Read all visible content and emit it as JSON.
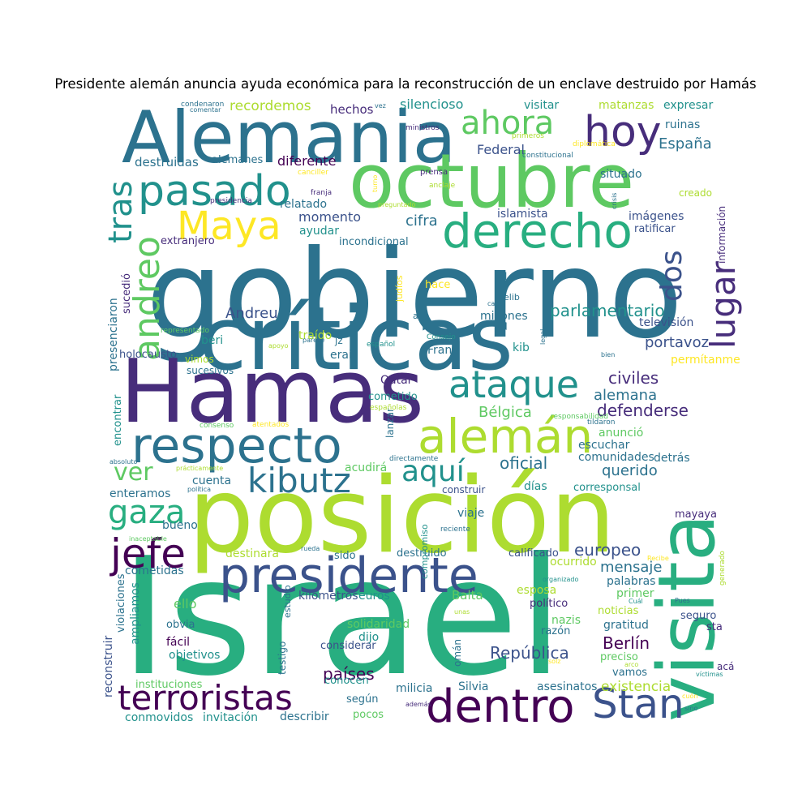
{
  "title": "Presidente alemán anuncia ayuda económica para la reconstrucción de un enclave destruido por Hamás",
  "colors": {
    "background": "#ffffff",
    "palette": [
      "#440154",
      "#472d7b",
      "#3b528b",
      "#2c728e",
      "#21918c",
      "#28ae80",
      "#5ec962",
      "#addc30",
      "#fde725"
    ]
  },
  "words": [
    {
      "text": "Israel",
      "color": "#28ae80"
    },
    {
      "text": "gobierno",
      "color": "#2c728e"
    },
    {
      "text": "posición",
      "color": "#addc30"
    },
    {
      "text": "críticas",
      "color": "#2c728e"
    },
    {
      "text": "Hamas",
      "color": "#472d7b"
    },
    {
      "text": "Alemania",
      "color": "#2c728e"
    },
    {
      "text": "octubre",
      "color": "#5ec962"
    },
    {
      "text": "visita",
      "color": "#28ae80"
    },
    {
      "text": "respecto",
      "color": "#2c728e"
    },
    {
      "text": "presidente",
      "color": "#3b528b"
    },
    {
      "text": "ataque",
      "color": "#21918c"
    },
    {
      "text": "alemán",
      "color": "#addc30"
    },
    {
      "text": "derecho",
      "color": "#28ae80"
    },
    {
      "text": "pasado",
      "color": "#21918c"
    },
    {
      "text": "hoy",
      "color": "#472d7b"
    },
    {
      "text": "ahora",
      "color": "#5ec962"
    },
    {
      "text": "Maya",
      "color": "#fde725"
    },
    {
      "text": "dentro",
      "color": "#440154"
    },
    {
      "text": "Stan",
      "color": "#3b528b"
    },
    {
      "text": "terroristas",
      "color": "#440154"
    },
    {
      "text": "kibutz",
      "color": "#2c728e"
    },
    {
      "text": "jefe",
      "color": "#440154"
    },
    {
      "text": "gaza",
      "color": "#28ae80"
    },
    {
      "text": "andreo",
      "color": "#5ec962"
    },
    {
      "text": "tras",
      "color": "#21918c"
    },
    {
      "text": "lugar",
      "color": "#472d7b"
    },
    {
      "text": "dos",
      "color": "#3b528b"
    },
    {
      "text": "aquí",
      "color": "#21918c"
    },
    {
      "text": "ver",
      "color": "#5ec962"
    },
    {
      "text": "República",
      "color": "#3b528b"
    },
    {
      "text": "Berlín",
      "color": "#440154"
    },
    {
      "text": "existencia",
      "color": "#addc30"
    },
    {
      "text": "países",
      "color": "#440154"
    },
    {
      "text": "europeo",
      "color": "#3b528b"
    },
    {
      "text": "mensaje",
      "color": "#2c728e"
    },
    {
      "text": "defenderse",
      "color": "#472d7b"
    },
    {
      "text": "civiles",
      "color": "#472d7b"
    },
    {
      "text": "alemana",
      "color": "#2c728e"
    },
    {
      "text": "Bélgica",
      "color": "#5ec962"
    },
    {
      "text": "oficial",
      "color": "#2c728e"
    },
    {
      "text": "querido",
      "color": "#2c728e"
    },
    {
      "text": "portavoz",
      "color": "#3b528b"
    },
    {
      "text": "parlamentario",
      "color": "#21918c"
    },
    {
      "text": "Andreu",
      "color": "#3b528b"
    },
    {
      "text": "momento",
      "color": "#3b528b"
    },
    {
      "text": "cifra",
      "color": "#2c728e"
    },
    {
      "text": "Federal",
      "color": "#3b528b"
    },
    {
      "text": "España",
      "color": "#2c728e"
    },
    {
      "text": "recordemos",
      "color": "#addc30"
    },
    {
      "text": "hechos",
      "color": "#472d7b"
    },
    {
      "text": "silencioso",
      "color": "#21918c"
    },
    {
      "text": "visitar",
      "color": "#21918c"
    },
    {
      "text": "matanzas",
      "color": "#addc30"
    },
    {
      "text": "expresar",
      "color": "#21918c"
    },
    {
      "text": "ruinas",
      "color": "#2c728e"
    },
    {
      "text": "situado",
      "color": "#2c728e"
    },
    {
      "text": "diferente",
      "color": "#440154"
    },
    {
      "text": "destruidas",
      "color": "#2c728e"
    },
    {
      "text": "alemanes",
      "color": "#2c728e"
    },
    {
      "text": "relatado",
      "color": "#2c728e"
    },
    {
      "text": "ayudar",
      "color": "#21918c"
    },
    {
      "text": "incondicional",
      "color": "#2c728e"
    },
    {
      "text": "islamista",
      "color": "#3b528b"
    },
    {
      "text": "imágenes",
      "color": "#3b528b"
    },
    {
      "text": "ratificar",
      "color": "#3b528b"
    },
    {
      "text": "extranjero",
      "color": "#472d7b"
    },
    {
      "text": "información",
      "color": "#472d7b"
    },
    {
      "text": "creado",
      "color": "#addc30"
    },
    {
      "text": "televisión",
      "color": "#3b528b"
    },
    {
      "text": "permítanme",
      "color": "#fde725"
    },
    {
      "text": "millones",
      "color": "#2c728e"
    },
    {
      "text": "traído",
      "color": "#addc30"
    },
    {
      "text": "beri",
      "color": "#21918c"
    },
    {
      "text": "erail",
      "color": "#2c728e"
    },
    {
      "text": "jz",
      "color": "#2c728e"
    },
    {
      "text": "Fran",
      "color": "#2c728e"
    },
    {
      "text": "kib",
      "color": "#21918c"
    },
    {
      "text": "holocausto",
      "color": "#3b528b"
    },
    {
      "text": "vimos",
      "color": "#addc30"
    },
    {
      "text": "sucesivos",
      "color": "#2c728e"
    },
    {
      "text": "Qatar",
      "color": "#472d7b"
    },
    {
      "text": "cometido",
      "color": "#21918c"
    },
    {
      "text": "sucedió",
      "color": "#472d7b"
    },
    {
      "text": "presenciaron",
      "color": "#2c728e"
    },
    {
      "text": "encontrar",
      "color": "#21918c"
    },
    {
      "text": "anunció",
      "color": "#5ec962"
    },
    {
      "text": "escuchar",
      "color": "#2c728e"
    },
    {
      "text": "comunidades",
      "color": "#2c728e"
    },
    {
      "text": "detrás",
      "color": "#2c728e"
    },
    {
      "text": "acudirá",
      "color": "#5ec962"
    },
    {
      "text": "cuenta",
      "color": "#2c728e"
    },
    {
      "text": "enteramos",
      "color": "#2c728e"
    },
    {
      "text": "días",
      "color": "#21918c"
    },
    {
      "text": "corresponsal",
      "color": "#21918c"
    },
    {
      "text": "construir",
      "color": "#3b528b"
    },
    {
      "text": "viaje",
      "color": "#2c728e"
    },
    {
      "text": "mayaya",
      "color": "#472d7b"
    },
    {
      "text": "bueno",
      "color": "#2c728e"
    },
    {
      "text": "destinará",
      "color": "#addc30"
    },
    {
      "text": "sido",
      "color": "#2c728e"
    },
    {
      "text": "destruido",
      "color": "#2c728e"
    },
    {
      "text": "calificado",
      "color": "#3b528b"
    },
    {
      "text": "ocurrido",
      "color": "#addc30"
    },
    {
      "text": "cometidas",
      "color": "#2c728e"
    },
    {
      "text": "palabras",
      "color": "#2c728e"
    },
    {
      "text": "ello",
      "color": "#5ec962"
    },
    {
      "text": "kilómetros",
      "color": "#3b528b"
    },
    {
      "text": "euros",
      "color": "#21918c"
    },
    {
      "text": "Balta",
      "color": "#5ec962"
    },
    {
      "text": "esposa",
      "color": "#addc30"
    },
    {
      "text": "primer",
      "color": "#5ec962"
    },
    {
      "text": "político",
      "color": "#472d7b"
    },
    {
      "text": "noticias",
      "color": "#addc30"
    },
    {
      "text": "nazis",
      "color": "#5ec962"
    },
    {
      "text": "razón",
      "color": "#2c728e"
    },
    {
      "text": "seguro",
      "color": "#3b528b"
    },
    {
      "text": "gratitud",
      "color": "#2c728e"
    },
    {
      "text": "sta",
      "color": "#472d7b"
    },
    {
      "text": "obvia",
      "color": "#2c728e"
    },
    {
      "text": "fácil",
      "color": "#440154"
    },
    {
      "text": "objetivos",
      "color": "#21918c"
    },
    {
      "text": "ampliamos",
      "color": "#21918c"
    },
    {
      "text": "violaciones",
      "color": "#2c728e"
    },
    {
      "text": "reconstruir",
      "color": "#3b528b"
    },
    {
      "text": "solidaridad",
      "color": "#5ec962"
    },
    {
      "text": "dijo",
      "color": "#21918c"
    },
    {
      "text": "considerar",
      "color": "#3b528b"
    },
    {
      "text": "conocen",
      "color": "#21918c"
    },
    {
      "text": "preciso",
      "color": "#5ec962"
    },
    {
      "text": "vamos",
      "color": "#2c728e"
    },
    {
      "text": "acá",
      "color": "#472d7b"
    },
    {
      "text": "milicia",
      "color": "#2c728e"
    },
    {
      "text": "Silvia",
      "color": "#2c728e"
    },
    {
      "text": "asesinatos",
      "color": "#2c728e"
    },
    {
      "text": "según",
      "color": "#2c728e"
    },
    {
      "text": "pocos",
      "color": "#5ec962"
    },
    {
      "text": "describir",
      "color": "#2c728e"
    },
    {
      "text": "invitación",
      "color": "#21918c"
    },
    {
      "text": "conmovidos",
      "color": "#21918c"
    },
    {
      "text": "instituciones",
      "color": "#5ec962"
    },
    {
      "text": "testigo",
      "color": "#2c728e"
    },
    {
      "text": "omán",
      "color": "#2c728e"
    },
    {
      "text": "estudio",
      "color": "#2c728e"
    },
    {
      "text": "lanzar",
      "color": "#2c728e"
    },
    {
      "text": "compromiso",
      "color": "#21918c"
    },
    {
      "text": "hace",
      "color": "#fde725"
    },
    {
      "text": "tal",
      "color": "#2c728e"
    },
    {
      "text": "elib",
      "color": "#2c728e"
    },
    {
      "text": "allí",
      "color": "#2c728e"
    },
    {
      "text": "judíos",
      "color": "#fde725"
    },
    {
      "text": "condenaron",
      "color": "#2c728e"
    },
    {
      "text": "comentar",
      "color": "#2c728e"
    },
    {
      "text": "vez",
      "color": "#2c728e"
    },
    {
      "text": "ministros",
      "color": "#472d7b"
    },
    {
      "text": "primeros",
      "color": "#addc30"
    },
    {
      "text": "diplomática",
      "color": "#fde725"
    },
    {
      "text": "constitucional",
      "color": "#2c728e"
    },
    {
      "text": "canciller",
      "color": "#fde725"
    },
    {
      "text": "prensa",
      "color": "#472d7b"
    },
    {
      "text": "franja",
      "color": "#472d7b"
    },
    {
      "text": "anclaje",
      "color": "#addc30"
    },
    {
      "text": "turno",
      "color": "#fde725"
    },
    {
      "text": "presidencia",
      "color": "#472d7b"
    },
    {
      "text": "preguntado",
      "color": "#addc30"
    },
    {
      "text": "crisis",
      "color": "#2c728e"
    },
    {
      "text": "cada",
      "color": "#2c728e"
    },
    {
      "text": "representado",
      "color": "#5ec962"
    },
    {
      "text": "Consejo",
      "color": "#21918c"
    },
    {
      "text": "apoyo",
      "color": "#addc30"
    },
    {
      "text": "parece",
      "color": "#2c728e"
    },
    {
      "text": "español",
      "color": "#21918c"
    },
    {
      "text": "bien",
      "color": "#2c728e"
    },
    {
      "text": "legal",
      "color": "#2c728e"
    },
    {
      "text": "españolas",
      "color": "#addc30"
    },
    {
      "text": "responsabilidad",
      "color": "#5ec962"
    },
    {
      "text": "tildaron",
      "color": "#2c728e"
    },
    {
      "text": "consenso",
      "color": "#5ec962"
    },
    {
      "text": "atentados",
      "color": "#fde725"
    },
    {
      "text": "absoluto",
      "color": "#2c728e"
    },
    {
      "text": "directamente",
      "color": "#2c728e"
    },
    {
      "text": "prácticamente",
      "color": "#addc30"
    },
    {
      "text": "política",
      "color": "#2c728e"
    },
    {
      "text": "reciente",
      "color": "#2c728e"
    },
    {
      "text": "inaceptable",
      "color": "#5ec962"
    },
    {
      "text": "rueda",
      "color": "#2c728e"
    },
    {
      "text": "Recibe",
      "color": "#fde725"
    },
    {
      "text": "generado",
      "color": "#addc30"
    },
    {
      "text": "organizado",
      "color": "#21918c"
    },
    {
      "text": "Cuál",
      "color": "#21918c"
    },
    {
      "text": "Pues",
      "color": "#2c728e"
    },
    {
      "text": "unas",
      "color": "#addc30"
    },
    {
      "text": "solz",
      "color": "#fde725"
    },
    {
      "text": "arco",
      "color": "#addc30"
    },
    {
      "text": "víctimas",
      "color": "#21918c"
    },
    {
      "text": "además",
      "color": "#472d7b"
    },
    {
      "text": "cuón",
      "color": "#fde725"
    },
    {
      "text": "sino",
      "color": "#2c728e"
    },
    {
      "text": "histórica",
      "color": "#472d7b"
    }
  ]
}
